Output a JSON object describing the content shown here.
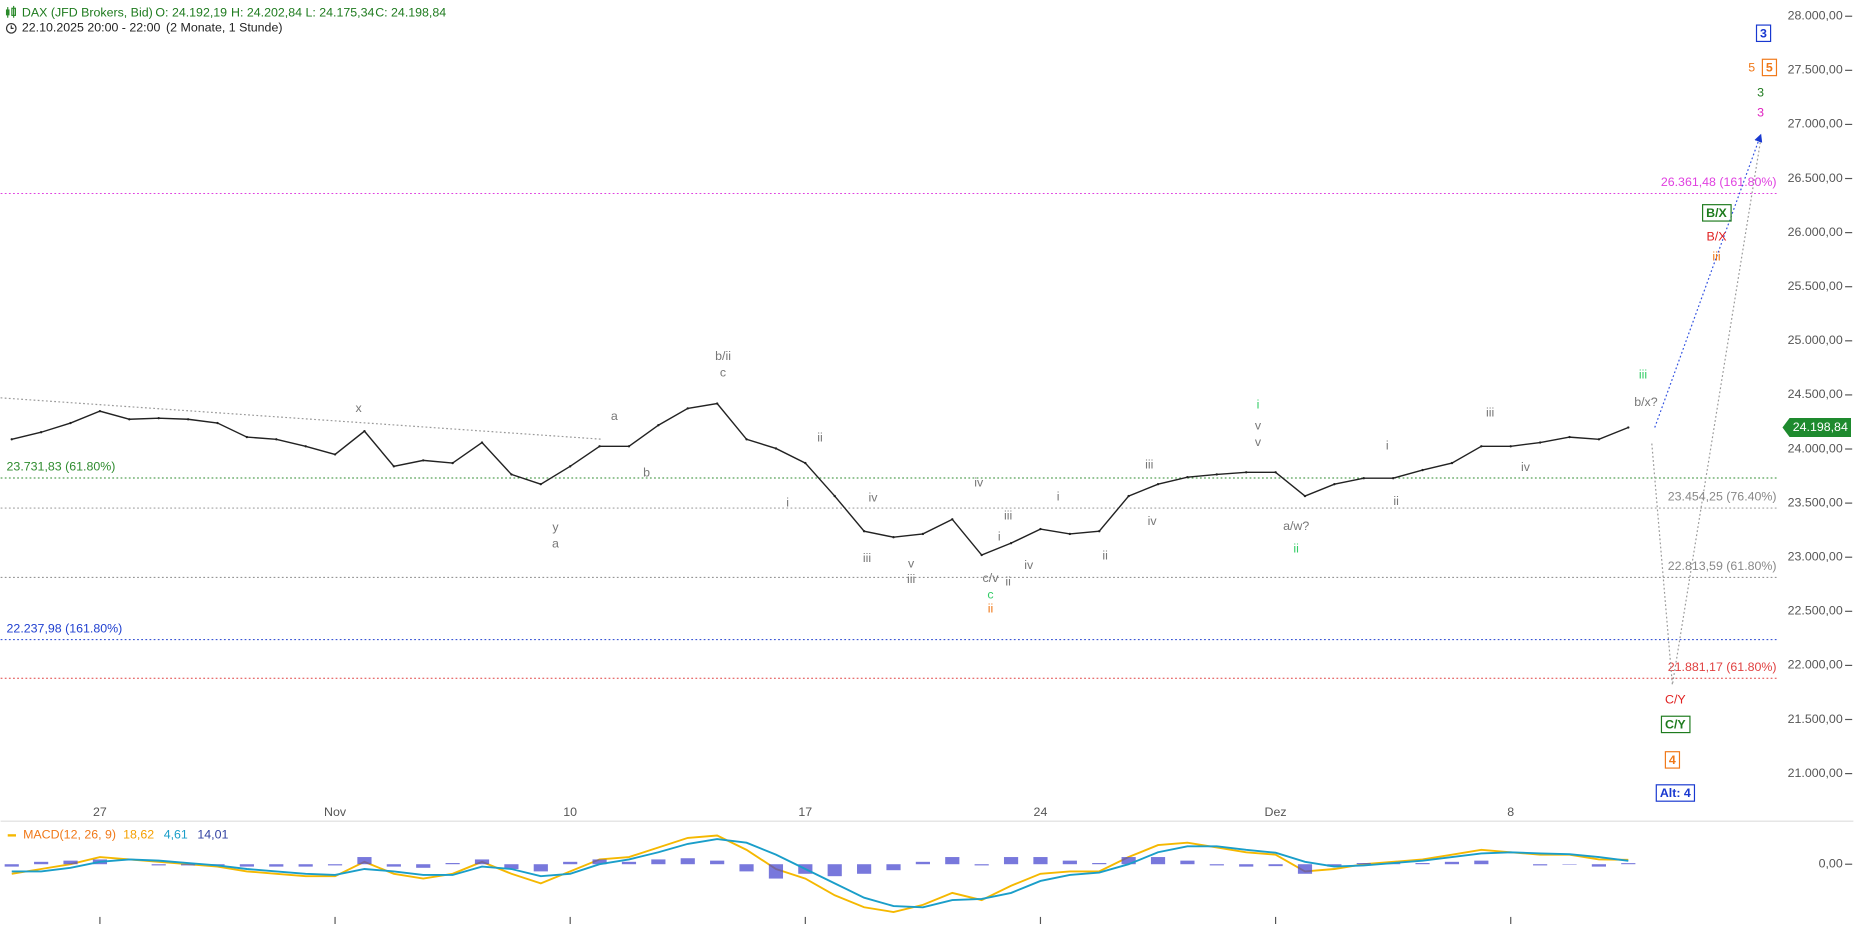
{
  "chart_data": [
    {
      "type": "line",
      "title": "DAX (JFD Brokers, Bid)",
      "ohlc": [
        {
          "value": 24192.19,
          "label": "O: 24.192,19"
        },
        {
          "value": 24202.84,
          "label": "H: 24.202,84"
        },
        {
          "value": 24175.34,
          "label": "L: 24.175,34"
        },
        {
          "value": 24198.84,
          "label": "C: 24.198,84"
        }
      ],
      "subtitle": "22.10.2025 20:00 - 22:00",
      "period": "(2 Monate, 1 Stunde)",
      "categories": [
        null,
        null,
        null,
        "27",
        null,
        null,
        null,
        null,
        null,
        null,
        null,
        "Nov",
        null,
        null,
        null,
        null,
        null,
        null,
        null,
        "10",
        null,
        null,
        null,
        null,
        null,
        null,
        null,
        "17",
        null,
        null,
        null,
        null,
        null,
        null,
        null,
        "24",
        null,
        null,
        null,
        null,
        null,
        null,
        null,
        "Dez",
        null,
        null,
        null,
        null,
        null,
        null,
        null,
        "8",
        null,
        null,
        null,
        null
      ],
      "series": [
        {
          "color": "#222222",
          "values": [
            24090,
            24155,
            24240,
            24350,
            24275,
            24285,
            24275,
            24240,
            24110,
            24090,
            24025,
            23950,
            24165,
            23840,
            23895,
            23870,
            24060,
            23765,
            23675,
            23840,
            24025,
            24025,
            24220,
            24375,
            24420,
            24090,
            24005,
            23870,
            23565,
            23240,
            23185,
            23215,
            23350,
            23020,
            23130,
            23260,
            23215,
            23240,
            23565,
            23675,
            23740,
            23765,
            23785,
            23785,
            23565,
            23675,
            23730,
            23730,
            23805,
            23870,
            24025,
            24025,
            24060,
            24110,
            24090,
            24198.84
          ]
        }
      ],
      "last_price": {
        "value": 24198.84,
        "label": "24.198,84"
      },
      "ylim": [
        20560,
        28150
      ],
      "yticks": [
        {
          "value": 28000,
          "label": "28.000,00"
        },
        {
          "value": 27500,
          "label": "27.500,00"
        },
        {
          "value": 27000,
          "label": "27.000,00"
        },
        {
          "value": 26500,
          "label": "26.500,00"
        },
        {
          "value": 26000,
          "label": "26.000,00"
        },
        {
          "value": 25500,
          "label": "25.500,00"
        },
        {
          "value": 25000,
          "label": "25.000,00"
        },
        {
          "value": 24500,
          "label": "24.500,00"
        },
        {
          "value": 24000,
          "label": "24.000,00"
        },
        {
          "value": 23500,
          "label": "23.500,00"
        },
        {
          "value": 23000,
          "label": "23.000,00"
        },
        {
          "value": 22500,
          "label": "22.500,00"
        },
        {
          "value": 22000,
          "label": "22.000,00"
        },
        {
          "value": 21500,
          "label": "21.500,00"
        },
        {
          "value": 21000,
          "label": "21.000,00"
        }
      ],
      "levels": [
        {
          "value": 26361.48,
          "label": "26.361,48 (161.80%)",
          "color": "#e040e0",
          "side": "right"
        },
        {
          "value": 23731.83,
          "label": "23.731,83 (61.80%)",
          "color": "#2e8b2e",
          "side": "left"
        },
        {
          "value": 23454.25,
          "label": "23.454,25 (76.40%)",
          "color": "#888888",
          "side": "right"
        },
        {
          "value": 22813.59,
          "label": "22.813,59 (61.80%)",
          "color": "#888888",
          "side": "right"
        },
        {
          "value": 22237.98,
          "label": "22.237,98 (161.80%)",
          "color": "#2040d0",
          "side": "left"
        },
        {
          "value": 21881.17,
          "label": "21.881,17 (61.80%)",
          "color": "#e04040",
          "side": "right"
        }
      ],
      "trendlines": [
        {
          "color": "#999999",
          "x": [
            -0.38,
            20.1
          ],
          "y": [
            24473,
            24090
          ],
          "arrow": false
        },
        {
          "color": "#3050e0",
          "x": [
            55.9,
            59.5
          ],
          "y": [
            24198.84,
            26900
          ],
          "arrow": true
        },
        {
          "color": "#999999",
          "x": [
            55.8,
            56.5,
            59.5
          ],
          "y": [
            24050,
            21820,
            26850
          ],
          "arrow": false
        }
      ],
      "annotations": [
        {
          "text": "x",
          "x": 11.8,
          "y": 24374,
          "color": "#777777",
          "style": "plain"
        },
        {
          "text": "a",
          "x": 20.5,
          "y": 24298,
          "color": "#777777",
          "style": "plain"
        },
        {
          "text": "b",
          "x": 21.6,
          "y": 23774,
          "color": "#777777",
          "style": "plain"
        },
        {
          "text": "b/ii",
          "x": 24.2,
          "y": 24855,
          "color": "#777777",
          "style": "plain"
        },
        {
          "text": "c",
          "x": 24.2,
          "y": 24702,
          "color": "#777777",
          "style": "plain"
        },
        {
          "text": "y",
          "x": 18.5,
          "y": 23271,
          "color": "#777777",
          "style": "plain"
        },
        {
          "text": "a",
          "x": 18.5,
          "y": 23119,
          "color": "#777777",
          "style": "plain"
        },
        {
          "text": "ii",
          "x": 27.5,
          "y": 24101,
          "color": "#777777",
          "style": "plain"
        },
        {
          "text": "i",
          "x": 26.4,
          "y": 23501,
          "color": "#777777",
          "style": "plain"
        },
        {
          "text": "iv",
          "x": 29.3,
          "y": 23544,
          "color": "#777777",
          "style": "plain"
        },
        {
          "text": "iii",
          "x": 29.1,
          "y": 22987,
          "color": "#777777",
          "style": "plain"
        },
        {
          "text": "v",
          "x": 30.6,
          "y": 22933,
          "color": "#777777",
          "style": "plain"
        },
        {
          "text": "iii",
          "x": 30.6,
          "y": 22791,
          "color": "#777777",
          "style": "plain"
        },
        {
          "text": "iv",
          "x": 32.9,
          "y": 23686,
          "color": "#777777",
          "style": "plain"
        },
        {
          "text": "iii",
          "x": 33.9,
          "y": 23381,
          "color": "#777777",
          "style": "plain"
        },
        {
          "text": "i",
          "x": 33.6,
          "y": 23184,
          "color": "#777777",
          "style": "plain"
        },
        {
          "text": "c/v",
          "x": 33.3,
          "y": 22802,
          "color": "#777777",
          "style": "plain"
        },
        {
          "text": "ii",
          "x": 33.9,
          "y": 22769,
          "color": "#777777",
          "style": "plain"
        },
        {
          "text": "iv",
          "x": 34.6,
          "y": 22922,
          "color": "#777777",
          "style": "plain"
        },
        {
          "text": "i",
          "x": 35.6,
          "y": 23555,
          "color": "#777777",
          "style": "plain"
        },
        {
          "text": "ii",
          "x": 37.2,
          "y": 23009,
          "color": "#777777",
          "style": "plain"
        },
        {
          "text": "iii",
          "x": 38.7,
          "y": 23850,
          "color": "#777777",
          "style": "plain"
        },
        {
          "text": "iv",
          "x": 38.8,
          "y": 23326,
          "color": "#777777",
          "style": "plain"
        },
        {
          "text": "v",
          "x": 42.4,
          "y": 24211,
          "color": "#777777",
          "style": "plain"
        },
        {
          "text": "v",
          "x": 42.4,
          "y": 24058,
          "color": "#777777",
          "style": "plain"
        },
        {
          "text": "a/w?",
          "x": 43.7,
          "y": 23282,
          "color": "#777777",
          "style": "plain"
        },
        {
          "text": "i",
          "x": 46.8,
          "y": 24025,
          "color": "#777777",
          "style": "plain"
        },
        {
          "text": "ii",
          "x": 47.1,
          "y": 23512,
          "color": "#777777",
          "style": "plain"
        },
        {
          "text": "iii",
          "x": 50.3,
          "y": 24331,
          "color": "#777777",
          "style": "plain"
        },
        {
          "text": "iv",
          "x": 51.5,
          "y": 23828,
          "color": "#777777",
          "style": "plain"
        },
        {
          "text": "b/x?",
          "x": 55.6,
          "y": 24429,
          "color": "#777777",
          "style": "plain"
        },
        {
          "text": "i",
          "x": 42.4,
          "y": 24407,
          "color": "#33cc66",
          "style": "plain"
        },
        {
          "text": "c",
          "x": 33.3,
          "y": 22649,
          "color": "#33cc66",
          "style": "plain"
        },
        {
          "text": "ii",
          "x": 43.7,
          "y": 23075,
          "color": "#33cc66",
          "style": "plain"
        },
        {
          "text": "iii",
          "x": 55.5,
          "y": 24680,
          "color": "#33cc66",
          "style": "plain"
        },
        {
          "text": "ii",
          "x": 33.3,
          "y": 22518,
          "color": "#f07818",
          "style": "plain"
        },
        {
          "text": "iii",
          "x": 58.0,
          "y": 25772,
          "color": "#f07818",
          "style": "plain"
        },
        {
          "text": "B/X",
          "x": 58.0,
          "y": 25958,
          "color": "#e02020",
          "style": "plain"
        },
        {
          "text": "C/Y",
          "x": 56.6,
          "y": 21677,
          "color": "#e02020",
          "style": "plain"
        },
        {
          "text": "B/X",
          "x": 58.0,
          "y": 26176,
          "color": "#1e7b1e",
          "style": "boxed"
        },
        {
          "text": "C/Y",
          "x": 56.6,
          "y": 21448,
          "color": "#1e7b1e",
          "style": "boxed"
        },
        {
          "text": "4",
          "x": 56.5,
          "y": 21120,
          "color": "#f07818",
          "style": "boxed"
        },
        {
          "text": "Alt: 4",
          "x": 56.6,
          "y": 20814,
          "color": "#1838d0",
          "style": "boxed"
        },
        {
          "text": "3",
          "x": 59.6,
          "y": 27836,
          "color": "#1838d0",
          "style": "boxed"
        },
        {
          "text": "5",
          "x": 59.2,
          "y": 27520,
          "color": "#f07818",
          "style": "plain"
        },
        {
          "text": "5",
          "x": 59.8,
          "y": 27520,
          "color": "#f07818",
          "style": "boxed"
        },
        {
          "text": "3",
          "x": 59.5,
          "y": 27290,
          "color": "#1e7b1e",
          "style": "plain"
        },
        {
          "text": "3",
          "x": 59.5,
          "y": 27105,
          "color": "#e020c0",
          "style": "plain"
        }
      ]
    },
    {
      "type": "line",
      "legend_title": "MACD(12, 26, 9)",
      "ylim": [
        -250,
        170
      ],
      "yticks": [
        {
          "value": 0,
          "label": "0,00"
        }
      ],
      "series": [
        {
          "kind": "line",
          "color": "#f5b800",
          "last": {
            "value": 18.62,
            "label": "18,62"
          },
          "values": [
            -40,
            -20,
            0,
            30,
            20,
            10,
            0,
            -10,
            -30,
            -40,
            -50,
            -50,
            10,
            -40,
            -60,
            -40,
            10,
            -40,
            -80,
            -30,
            20,
            30,
            70,
            110,
            120,
            60,
            -20,
            -60,
            -130,
            -180,
            -200,
            -170,
            -120,
            -150,
            -90,
            -40,
            -30,
            -30,
            30,
            80,
            90,
            70,
            50,
            40,
            -30,
            -20,
            0,
            10,
            20,
            40,
            60,
            50,
            40,
            40,
            20,
            18.62
          ]
        },
        {
          "kind": "bar",
          "color": "#4b4bd0",
          "last": {
            "value": 4.61,
            "label": "4,61"
          },
          "values": [
            -10,
            10,
            15,
            20,
            0,
            -5,
            -5,
            -5,
            -10,
            -10,
            -10,
            -5,
            30,
            -10,
            -15,
            5,
            20,
            -20,
            -30,
            10,
            20,
            10,
            20,
            25,
            15,
            -30,
            -60,
            -40,
            -50,
            -40,
            -25,
            10,
            30,
            -5,
            30,
            30,
            15,
            5,
            30,
            30,
            15,
            -5,
            -10,
            -8,
            -40,
            -10,
            5,
            5,
            5,
            10,
            15,
            0,
            -5,
            -2,
            -10,
            4.61
          ]
        },
        {
          "kind": "line",
          "color": "#1a9ec9",
          "last": {
            "value": 14.01,
            "label": "14,01"
          },
          "values": [
            -30,
            -30,
            -15,
            10,
            20,
            15,
            5,
            -5,
            -20,
            -30,
            -40,
            -45,
            -20,
            -30,
            -45,
            -45,
            -10,
            -20,
            -50,
            -40,
            0,
            20,
            50,
            85,
            105,
            90,
            40,
            -20,
            -80,
            -140,
            -175,
            -180,
            -150,
            -145,
            -120,
            -70,
            -45,
            -35,
            0,
            50,
            75,
            75,
            60,
            48,
            10,
            -10,
            -5,
            5,
            15,
            30,
            45,
            50,
            45,
            42,
            30,
            14.01
          ]
        }
      ]
    }
  ]
}
